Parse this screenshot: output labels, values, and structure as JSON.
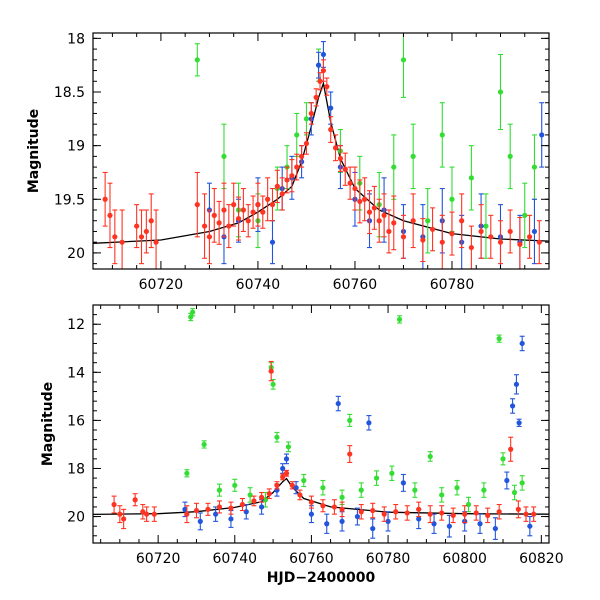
{
  "chart_data": [
    {
      "type": "scatter",
      "panel": "top",
      "xlim": [
        60706,
        60800
      ],
      "ylim": [
        20.15,
        17.95
      ],
      "y_inverted": true,
      "ylabel": "Magnitude",
      "xlabel": "",
      "xticks": [
        60720,
        60740,
        60760,
        60780
      ],
      "xtick_labels": [
        "60720",
        "60740",
        "60760",
        "60780"
      ],
      "yticks": [
        18,
        18.5,
        19,
        19.5,
        20
      ],
      "ytick_labels": [
        "18",
        "18.5",
        "19",
        "19.5",
        "20"
      ],
      "colors": {
        "green": "#33dd33",
        "blue": "#2255dd",
        "red": "#ff3322",
        "model": "#000000"
      },
      "model_curve": {
        "x": [
          60706,
          60720,
          60730,
          60736,
          60740,
          60744,
          60747,
          60749,
          60751,
          60752.5,
          60753.5,
          60755,
          60757,
          60760,
          60765,
          60770,
          60780,
          60790,
          60800
        ],
        "y": [
          19.91,
          19.88,
          19.8,
          19.72,
          19.62,
          19.5,
          19.38,
          19.15,
          18.82,
          18.55,
          18.42,
          18.78,
          19.12,
          19.4,
          19.6,
          19.7,
          19.82,
          19.87,
          19.89
        ]
      },
      "series": [
        {
          "color_key": "red",
          "x": [
            60708.5,
            60709.5,
            60710.5,
            60712,
            60715,
            60716,
            60717,
            60718,
            60719,
            60727.5,
            60729,
            60730,
            60731,
            60732,
            60733,
            60734,
            60735,
            60736,
            60737,
            60738,
            60739,
            60740,
            60741,
            60742,
            60743,
            60744,
            60745,
            60746,
            60747,
            60748,
            60749,
            60750,
            60751,
            60752,
            60752.8,
            60753.5,
            60754.2,
            60755,
            60756,
            60757,
            60758,
            60759,
            60760,
            60761,
            60762,
            60763,
            60764,
            60765,
            60766,
            60767,
            60768,
            60770,
            60772,
            60774,
            60776,
            60778,
            60780,
            60782,
            60784,
            60786,
            60788,
            60790,
            60792,
            60794,
            60796,
            60798
          ],
          "y": [
            19.5,
            19.65,
            19.85,
            19.9,
            19.75,
            19.85,
            19.8,
            19.7,
            19.9,
            19.55,
            19.75,
            19.85,
            19.65,
            19.72,
            19.6,
            19.75,
            19.55,
            19.68,
            19.6,
            19.7,
            19.62,
            19.55,
            19.62,
            19.5,
            19.55,
            19.38,
            19.45,
            19.32,
            19.28,
            19.2,
            19.1,
            18.98,
            18.7,
            18.55,
            18.4,
            18.3,
            18.45,
            18.85,
            19.02,
            19.12,
            19.22,
            19.35,
            19.4,
            19.52,
            19.5,
            19.62,
            19.58,
            19.7,
            19.65,
            19.8,
            19.72,
            19.85,
            19.7,
            19.88,
            19.78,
            19.9,
            19.82,
            19.7,
            19.95,
            19.8,
            19.85,
            19.9,
            19.8,
            19.92,
            19.85,
            19.9
          ],
          "err": [
            0.25,
            0.3,
            0.25,
            0.3,
            0.2,
            0.25,
            0.2,
            0.25,
            0.3,
            0.3,
            0.3,
            0.25,
            0.25,
            0.2,
            0.25,
            0.2,
            0.2,
            0.2,
            0.2,
            0.15,
            0.15,
            0.2,
            0.15,
            0.2,
            0.15,
            0.15,
            0.15,
            0.12,
            0.15,
            0.12,
            0.1,
            0.1,
            0.1,
            0.08,
            0.08,
            0.1,
            0.08,
            0.12,
            0.12,
            0.12,
            0.15,
            0.15,
            0.2,
            0.2,
            0.2,
            0.2,
            0.2,
            0.2,
            0.2,
            0.2,
            0.25,
            0.2,
            0.25,
            0.2,
            0.2,
            0.25,
            0.2,
            0.25,
            0.2,
            0.25,
            0.2,
            0.2,
            0.2,
            0.25,
            0.2,
            0.2
          ]
        },
        {
          "color_key": "blue",
          "x": [
            60730,
            60733,
            60736,
            60740,
            60743,
            60745,
            60747,
            60749,
            60751,
            60752.5,
            60753.5,
            60755,
            60757,
            60760,
            60763,
            60766,
            60770,
            60774,
            60778,
            60782,
            60786,
            60790,
            60794,
            60797,
            60798.5
          ],
          "y": [
            19.6,
            19.85,
            19.7,
            19.55,
            19.9,
            19.4,
            19.3,
            19.15,
            18.75,
            18.25,
            18.15,
            18.65,
            19.2,
            19.5,
            19.7,
            19.6,
            19.8,
            19.85,
            19.7,
            19.9,
            19.75,
            19.85,
            19.9,
            19.8,
            18.9
          ],
          "err": [
            0.25,
            0.25,
            0.2,
            0.25,
            0.2,
            0.2,
            0.2,
            0.15,
            0.15,
            0.12,
            0.12,
            0.15,
            0.2,
            0.25,
            0.25,
            0.3,
            0.25,
            0.3,
            0.3,
            0.25,
            0.3,
            0.3,
            0.25,
            0.3,
            0.3
          ]
        },
        {
          "color_key": "green",
          "x": [
            60727.5,
            60733,
            60736,
            60740,
            60744,
            60746,
            60748,
            60750,
            60752.5,
            60757,
            60761,
            60765,
            60768,
            60770,
            60772,
            60775,
            60778,
            60780,
            60784,
            60787,
            60790,
            60792,
            60795,
            60797
          ],
          "y": [
            18.2,
            19.1,
            19.6,
            19.7,
            19.4,
            19.2,
            18.9,
            18.75,
            18.25,
            19.05,
            19.35,
            19.55,
            19.2,
            18.2,
            19.1,
            19.7,
            18.9,
            19.5,
            19.3,
            19.75,
            18.5,
            19.1,
            19.65,
            19.2
          ],
          "err": [
            0.15,
            0.3,
            0.25,
            0.25,
            0.2,
            0.2,
            0.2,
            0.15,
            0.15,
            0.2,
            0.25,
            0.3,
            0.3,
            0.35,
            0.3,
            0.3,
            0.3,
            0.3,
            0.3,
            0.3,
            0.35,
            0.3,
            0.3,
            0.3
          ]
        }
      ]
    },
    {
      "type": "scatter",
      "panel": "bottom",
      "xlim": [
        60703,
        60822
      ],
      "ylim": [
        21.1,
        11.2
      ],
      "y_inverted": true,
      "ylabel": "Magnitude",
      "xlabel": "HJD−2400000",
      "xticks": [
        60720,
        60740,
        60760,
        60780,
        60800,
        60820
      ],
      "xtick_labels": [
        "60720",
        "60740",
        "60760",
        "60780",
        "60800",
        "60820"
      ],
      "yticks": [
        12,
        14,
        16,
        18,
        20
      ],
      "ytick_labels": [
        "12",
        "14",
        "16",
        "18",
        "20"
      ],
      "colors": {
        "green": "#33dd33",
        "blue": "#2255dd",
        "red": "#ff3322",
        "model": "#000000"
      },
      "model_curve": {
        "x": [
          60703,
          60720,
          60730,
          60740,
          60747,
          60750,
          60752.5,
          60753.5,
          60755,
          60758,
          60765,
          60780,
          60800,
          60822
        ],
        "y": [
          19.91,
          19.88,
          19.8,
          19.62,
          19.38,
          19.0,
          18.55,
          18.42,
          18.78,
          19.25,
          19.6,
          19.82,
          19.88,
          19.9
        ]
      },
      "series": [
        {
          "color_key": "red",
          "x": [
            60708.5,
            60710,
            60711,
            60714,
            60716,
            60717,
            60719,
            60727.5,
            60730,
            60733,
            60736,
            60739,
            60742,
            60745,
            60747,
            60749,
            60749.5,
            60751,
            60752.5,
            60753.5,
            60755,
            60757,
            60760,
            60763,
            60766,
            60768,
            60770,
            60773,
            60776,
            60779,
            60782,
            60785,
            60788,
            60791,
            60794,
            60797,
            60800,
            60803,
            60806,
            60809,
            60812,
            60814,
            60816,
            60818
          ],
          "y": [
            19.5,
            19.9,
            20.1,
            19.3,
            19.8,
            19.9,
            19.9,
            19.9,
            19.75,
            19.7,
            19.6,
            19.65,
            19.5,
            19.35,
            19.2,
            19.05,
            13.95,
            18.7,
            18.35,
            18.2,
            18.7,
            19.1,
            19.4,
            19.55,
            19.6,
            19.7,
            17.4,
            19.8,
            19.75,
            19.9,
            19.8,
            19.85,
            19.7,
            19.9,
            19.85,
            19.95,
            19.9,
            19.85,
            19.95,
            19.8,
            17.2,
            19.7,
            19.9,
            19.9
          ],
          "err": [
            0.35,
            0.35,
            0.4,
            0.25,
            0.3,
            0.3,
            0.3,
            0.35,
            0.3,
            0.25,
            0.25,
            0.25,
            0.25,
            0.2,
            0.2,
            0.2,
            0.4,
            0.15,
            0.12,
            0.12,
            0.15,
            0.2,
            0.25,
            0.25,
            0.3,
            0.3,
            0.35,
            0.3,
            0.3,
            0.3,
            0.3,
            0.3,
            0.3,
            0.35,
            0.3,
            0.3,
            0.35,
            0.3,
            0.3,
            0.3,
            0.5,
            0.35,
            0.3,
            0.3
          ]
        },
        {
          "color_key": "blue",
          "x": [
            60727,
            60731,
            60735,
            60739,
            60743,
            60747,
            60751,
            60752.5,
            60753.5,
            60756,
            60760,
            60764,
            60767,
            60768,
            60772,
            60775,
            60776,
            60780,
            60784,
            60788,
            60792,
            60796,
            60800,
            60804,
            60808,
            60811,
            60812.5,
            60813.5,
            60814.2,
            60815,
            60817
          ],
          "y": [
            19.7,
            20.2,
            19.9,
            20.1,
            19.8,
            19.6,
            18.9,
            18.0,
            17.6,
            18.8,
            19.9,
            20.3,
            15.3,
            20.2,
            20.0,
            16.1,
            20.5,
            20.2,
            18.6,
            20.1,
            20.3,
            20.4,
            20.2,
            20.3,
            20.5,
            18.5,
            15.4,
            14.5,
            16.1,
            12.8,
            20.4
          ],
          "err": [
            0.3,
            0.35,
            0.3,
            0.35,
            0.3,
            0.3,
            0.25,
            0.2,
            0.2,
            0.25,
            0.35,
            0.4,
            0.3,
            0.4,
            0.35,
            0.3,
            0.4,
            0.4,
            0.35,
            0.4,
            0.4,
            0.45,
            0.4,
            0.4,
            0.45,
            0.35,
            0.3,
            0.4,
            0.15,
            0.3,
            0.4
          ]
        },
        {
          "color_key": "green",
          "x": [
            60727.5,
            60728.5,
            60729,
            60732,
            60736,
            60740,
            60744,
            60748,
            60749.5,
            60750,
            60751,
            60754,
            60758,
            60763,
            60768,
            60770,
            60773,
            60777,
            60781,
            60783,
            60787,
            60791,
            60794,
            60798,
            60801,
            60805,
            60809,
            60810,
            60813,
            60815
          ],
          "y": [
            18.2,
            11.7,
            11.5,
            17.0,
            18.9,
            18.7,
            19.1,
            19.3,
            13.8,
            14.5,
            16.7,
            17.1,
            18.5,
            18.8,
            19.2,
            16.0,
            18.9,
            18.4,
            18.2,
            11.8,
            18.9,
            17.5,
            19.1,
            18.8,
            19.5,
            18.9,
            12.6,
            17.6,
            19.0,
            18.6
          ],
          "err": [
            0.15,
            0.15,
            0.15,
            0.15,
            0.25,
            0.25,
            0.3,
            0.3,
            0.2,
            0.2,
            0.2,
            0.2,
            0.25,
            0.3,
            0.3,
            0.25,
            0.3,
            0.3,
            0.3,
            0.15,
            0.3,
            0.2,
            0.3,
            0.3,
            0.3,
            0.3,
            0.15,
            0.25,
            0.3,
            0.3
          ]
        }
      ]
    }
  ]
}
